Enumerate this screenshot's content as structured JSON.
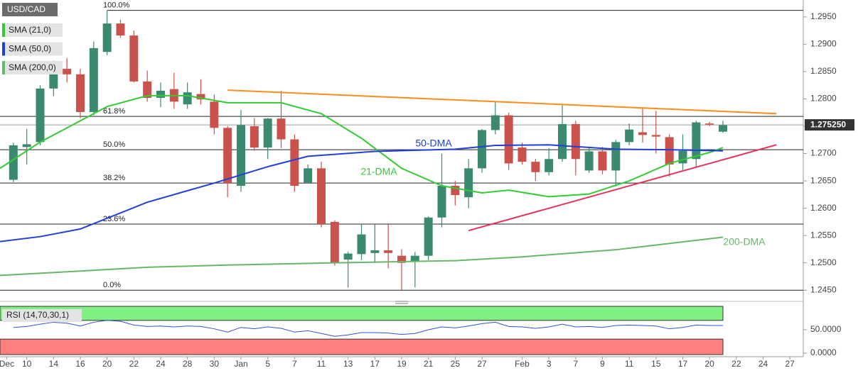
{
  "chart_data": {
    "type": "candlestick",
    "title": "USD/CAD",
    "candles": {
      "up_color": "#3b8a70",
      "down_color": "#c9524c",
      "open": [
        1.2652,
        1.2712,
        1.2721,
        1.2819,
        1.2855,
        1.2845,
        1.2776,
        1.2886,
        1.2938,
        1.2916,
        1.2832,
        1.2802,
        1.2818,
        1.279,
        1.2809,
        1.2795,
        1.2747,
        1.2641,
        1.275,
        1.2711,
        1.2764,
        1.2726,
        1.2647,
        1.2673,
        1.2575,
        1.2506,
        1.2516,
        1.2518,
        1.2523,
        1.2513,
        1.2503,
        1.2513,
        1.2583,
        1.2641,
        1.262,
        1.2673,
        1.2743,
        1.277,
        1.2711,
        1.2685,
        1.2666,
        1.269,
        1.2754,
        1.2669,
        1.2704,
        1.2669,
        1.2721,
        1.2739,
        1.2734,
        1.273,
        1.2682,
        1.269,
        1.2755,
        1.274
      ],
      "high": [
        1.272,
        1.2745,
        1.2825,
        1.287,
        1.2875,
        1.2855,
        1.2905,
        1.2962,
        1.2945,
        1.2925,
        1.2852,
        1.283,
        1.2848,
        1.283,
        1.2836,
        1.2808,
        1.275,
        1.278,
        1.2765,
        1.2765,
        1.2815,
        1.2735,
        1.268,
        1.2685,
        1.2578,
        1.252,
        1.257,
        1.257,
        1.257,
        1.2525,
        1.252,
        1.2585,
        1.27,
        1.265,
        1.269,
        1.2745,
        1.2795,
        1.2775,
        1.272,
        1.269,
        1.271,
        1.2788,
        1.276,
        1.271,
        1.2712,
        1.2725,
        1.2755,
        1.2785,
        1.2778,
        1.2735,
        1.2735,
        1.276,
        1.2758,
        1.276
      ],
      "low": [
        1.2648,
        1.268,
        1.2715,
        1.2805,
        1.283,
        1.2765,
        1.277,
        1.288,
        1.2912,
        1.283,
        1.2795,
        1.2785,
        1.2782,
        1.2782,
        1.279,
        1.2735,
        1.262,
        1.263,
        1.2705,
        1.269,
        1.271,
        1.263,
        1.2645,
        1.2565,
        1.2495,
        1.2455,
        1.2505,
        1.25,
        1.249,
        1.245,
        1.2455,
        1.2505,
        1.2565,
        1.2605,
        1.26,
        1.2665,
        1.2735,
        1.267,
        1.268,
        1.265,
        1.266,
        1.2685,
        1.266,
        1.2665,
        1.2662,
        1.264,
        1.2715,
        1.272,
        1.27,
        1.2658,
        1.267,
        1.2675,
        1.275,
        1.2738
      ],
      "close": [
        1.2715,
        1.2717,
        1.2819,
        1.2858,
        1.2845,
        1.2776,
        1.2893,
        1.2938,
        1.2916,
        1.2832,
        1.2802,
        1.2815,
        1.2795,
        1.2812,
        1.2799,
        1.2747,
        1.2646,
        1.2752,
        1.2711,
        1.2764,
        1.2726,
        1.2641,
        1.2673,
        1.2571,
        1.25,
        1.2517,
        1.2552,
        1.2523,
        1.2518,
        1.25,
        1.2513,
        1.2583,
        1.2641,
        1.2624,
        1.2673,
        1.2743,
        1.277,
        1.2682,
        1.2685,
        1.2666,
        1.269,
        1.2754,
        1.269,
        1.2704,
        1.2669,
        1.2721,
        1.2744,
        1.2734,
        1.2731,
        1.268,
        1.2705,
        1.2757,
        1.2753,
        1.2752
      ]
    },
    "series": [
      {
        "name": "SMA (21,0)",
        "label": "21-DMA",
        "color": "#33cc33",
        "x": [
          -1,
          2,
          4,
          7,
          10,
          13,
          16,
          20,
          23,
          26,
          29,
          32,
          35,
          37,
          40,
          43,
          46,
          49,
          52,
          53
        ],
        "values": [
          1.2673,
          1.2721,
          1.2747,
          1.2786,
          1.2806,
          1.2806,
          1.2793,
          1.2793,
          1.2773,
          1.2728,
          1.2673,
          1.2641,
          1.2628,
          1.2633,
          1.2621,
          1.2626,
          1.265,
          1.2682,
          1.2702,
          1.2711
        ]
      },
      {
        "name": "SMA (50,0)",
        "label": "50-DMA",
        "color": "#2040d8",
        "x": [
          -1,
          2,
          5,
          10,
          15,
          19,
          22,
          27,
          33,
          36,
          40,
          45,
          49,
          53
        ],
        "values": [
          1.2539,
          1.2548,
          1.2562,
          1.2611,
          1.2646,
          1.2676,
          1.2695,
          1.2704,
          1.2708,
          1.2715,
          1.2716,
          1.2708,
          1.2707,
          1.2705
        ]
      },
      {
        "name": "SMA (200,0)",
        "label": "200-DMA",
        "color": "#66b866",
        "x": [
          -1,
          5,
          10,
          16,
          24,
          33,
          38,
          45,
          53
        ],
        "values": [
          1.2477,
          1.2485,
          1.2492,
          1.2496,
          1.25,
          1.2504,
          1.2511,
          1.2524,
          1.2547
        ]
      }
    ],
    "trendlines": [
      {
        "color": "#ff8c1a",
        "x": [
          16,
          57
        ],
        "values": [
          1.2816,
          1.2773
        ]
      },
      {
        "color": "#e8315a",
        "x": [
          34,
          57
        ],
        "values": [
          1.2559,
          1.2716
        ]
      }
    ],
    "fibonacci": {
      "color": "#222222",
      "levels": [
        {
          "label": "100.0%",
          "value": 1.2962
        },
        {
          "label": "61.8%",
          "value": 1.2768
        },
        {
          "label": "50.0%",
          "value": 1.2707
        },
        {
          "label": "38.2%",
          "value": 1.2646
        },
        {
          "label": "23.6%",
          "value": 1.2571
        },
        {
          "label": "0.0%",
          "value": 1.245
        }
      ]
    },
    "last_price": {
      "value": 1.27525,
      "label": "1.275250"
    },
    "xlim": [
      -1,
      59
    ],
    "xticks": [
      {
        "value": -0.5,
        "label": "Dec"
      },
      {
        "value": 1,
        "label": "10"
      },
      {
        "value": 3,
        "label": "14"
      },
      {
        "value": 5,
        "label": "16"
      },
      {
        "value": 7,
        "label": "20"
      },
      {
        "value": 9,
        "label": "22"
      },
      {
        "value": 11,
        "label": "24"
      },
      {
        "value": 13,
        "label": "28"
      },
      {
        "value": 15,
        "label": "30"
      },
      {
        "value": 17,
        "label": "Jan"
      },
      {
        "value": 19,
        "label": "5"
      },
      {
        "value": 21,
        "label": "7"
      },
      {
        "value": 23,
        "label": "11"
      },
      {
        "value": 25,
        "label": "13"
      },
      {
        "value": 27,
        "label": "17"
      },
      {
        "value": 29,
        "label": "19"
      },
      {
        "value": 31,
        "label": "21"
      },
      {
        "value": 33,
        "label": "25"
      },
      {
        "value": 35,
        "label": "27"
      },
      {
        "value": 38,
        "label": "Feb"
      },
      {
        "value": 40,
        "label": "3"
      },
      {
        "value": 42,
        "label": "7"
      },
      {
        "value": 44,
        "label": "9"
      },
      {
        "value": 46,
        "label": "11"
      },
      {
        "value": 48,
        "label": "15"
      },
      {
        "value": 50,
        "label": "17"
      },
      {
        "value": 52,
        "label": "20"
      },
      {
        "value": 54,
        "label": "22"
      },
      {
        "value": 56,
        "label": "24"
      },
      {
        "value": 58,
        "label": "27"
      }
    ],
    "ylim": [
      1.2436,
      1.2981
    ],
    "yticks": [
      {
        "value": 1.245,
        "label": "1.2450"
      },
      {
        "value": 1.25,
        "label": "1.2500"
      },
      {
        "value": 1.255,
        "label": "1.2550"
      },
      {
        "value": 1.26,
        "label": "1.2600"
      },
      {
        "value": 1.265,
        "label": "1.2650"
      },
      {
        "value": 1.27,
        "label": "1.2700"
      },
      {
        "value": 1.275,
        "label": "1.2750"
      },
      {
        "value": 1.28,
        "label": "1.2800"
      },
      {
        "value": 1.285,
        "label": "1.2850"
      },
      {
        "value": 1.29,
        "label": "1.2900"
      },
      {
        "value": 1.295,
        "label": "1.2950"
      }
    ],
    "rsi": {
      "name": "RSI (14,70,30,1)",
      "color": "#3050d8",
      "overbought": 70,
      "oversold": 30,
      "overbought_color": "#80f080",
      "oversold_color": "#ff7f7f",
      "ylim": [
        0,
        100
      ],
      "yticks": [
        {
          "value": 50,
          "label": "50.0000"
        },
        {
          "value": 0,
          "label": "0.0000"
        }
      ],
      "values": [
        55,
        57,
        62,
        66,
        64,
        58,
        66,
        70,
        68,
        60,
        57,
        58,
        56,
        58,
        57,
        52,
        45,
        55,
        52,
        56,
        53,
        45,
        48,
        42,
        36,
        39,
        44,
        44,
        43,
        40,
        42,
        50,
        56,
        54,
        58,
        63,
        66,
        57,
        56,
        53,
        56,
        62,
        56,
        57,
        55,
        59,
        60,
        59,
        58,
        52,
        55,
        60,
        59,
        59
      ]
    }
  }
}
